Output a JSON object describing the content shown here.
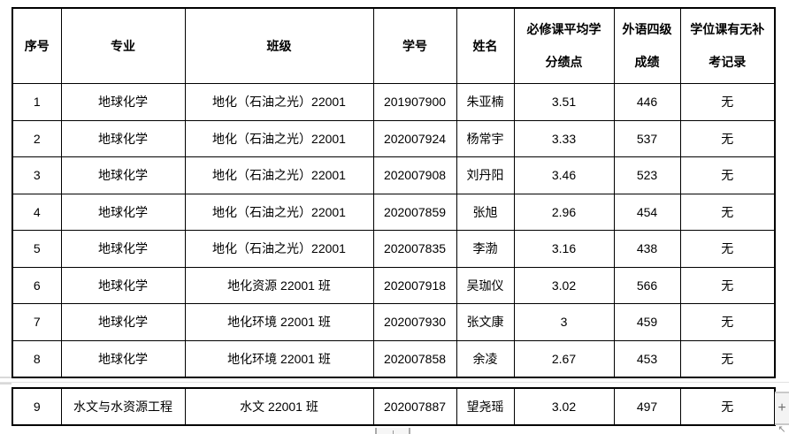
{
  "table": {
    "column_names": [
      "index",
      "major",
      "class",
      "student-id",
      "name",
      "gpa",
      "cet4",
      "makeup-record"
    ],
    "headers": [
      {
        "line1": "序号",
        "line2": ""
      },
      {
        "line1": "专业",
        "line2": ""
      },
      {
        "line1": "班级",
        "line2": ""
      },
      {
        "line1": "学号",
        "line2": ""
      },
      {
        "line1": "姓名",
        "line2": ""
      },
      {
        "line1": "必修课平均学",
        "line2": "分绩点"
      },
      {
        "line1": "外语四级",
        "line2": "成绩"
      },
      {
        "line1": "学位课有无补",
        "line2": "考记录"
      }
    ],
    "rows_page1": [
      [
        "1",
        "地球化学",
        "地化（石油之光）22001",
        "201907900",
        "朱亚楠",
        "3.51",
        "446",
        "无"
      ],
      [
        "2",
        "地球化学",
        "地化（石油之光）22001",
        "202007924",
        "杨常宇",
        "3.33",
        "537",
        "无"
      ],
      [
        "3",
        "地球化学",
        "地化（石油之光）22001",
        "202007908",
        "刘丹阳",
        "3.46",
        "523",
        "无"
      ],
      [
        "4",
        "地球化学",
        "地化（石油之光）22001",
        "202007859",
        "张旭",
        "2.96",
        "454",
        "无"
      ],
      [
        "5",
        "地球化学",
        "地化（石油之光）22001",
        "202007835",
        "李渤",
        "3.16",
        "438",
        "无"
      ],
      [
        "6",
        "地球化学",
        "地化资源 22001 班",
        "202007918",
        "吴珈仪",
        "3.02",
        "566",
        "无"
      ],
      [
        "7",
        "地球化学",
        "地化环境 22001 班",
        "202007930",
        "张文康",
        "3",
        "459",
        "无"
      ],
      [
        "8",
        "地球化学",
        "地化环境 22001 班",
        "202007858",
        "余凌",
        "2.67",
        "453",
        "无"
      ]
    ],
    "rows_page2": [
      [
        "9",
        "水文与水资源工程",
        "水文 22001 班",
        "202007887",
        "望尧瑶",
        "3.02",
        "497",
        "无"
      ]
    ]
  },
  "side_controls": {
    "insert_button_label": "+",
    "resize_icon_glyph": "↖"
  },
  "colors": {
    "table_border": "#000000",
    "page_sep": "#e2e2e2",
    "strip_bg": "#f3f3f3"
  }
}
